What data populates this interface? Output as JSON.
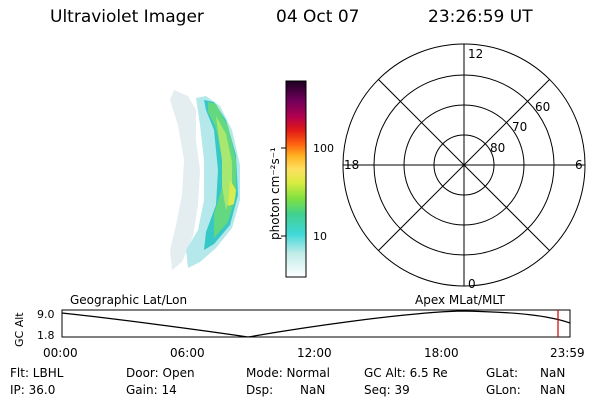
{
  "header": {
    "title": "Ultraviolet Imager",
    "date": "04 Oct 07",
    "time": "23:26:59 UT"
  },
  "colorbar": {
    "label": "photon cm⁻²s⁻¹",
    "ticks": [
      "100",
      "10"
    ]
  },
  "polar": {
    "clock_labels": [
      "12",
      "18",
      "6",
      "0"
    ],
    "lat_labels": [
      "60",
      "70",
      "80"
    ]
  },
  "timeline": {
    "left_label": "Geographic Lat/Lon",
    "right_label": "Apex MLat/MLT",
    "axis_title": "GC Alt",
    "y_ticks": [
      "9.0",
      "1.8"
    ],
    "x_ticks": [
      "00:00",
      "06:00",
      "12:00",
      "18:00",
      "23:59"
    ],
    "marker_color": "#cc0000"
  },
  "status": {
    "flt": "Flt: LBHL",
    "ip": "IP: 36.0",
    "door": "Door: Open",
    "gain": "Gain: 14",
    "mode": "Mode: Normal",
    "dsp": "Dsp:",
    "dsp_val": "NaN",
    "gcalt": "GC Alt: 6.5 Re",
    "seq": "Seq: 39",
    "glat": "GLat:",
    "glat_val": "NaN",
    "glon": "GLon:",
    "glon_val": "NaN"
  }
}
